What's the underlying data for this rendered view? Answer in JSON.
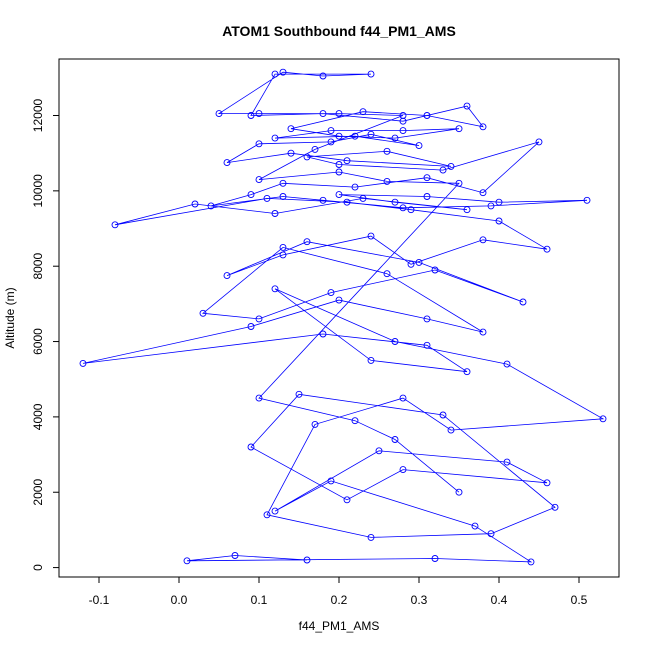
{
  "chart_data": {
    "type": "scatter",
    "title": "ATOM1 Southbound f44_PM1_AMS",
    "xlabel": "f44_PM1_AMS",
    "ylabel": "Altitude (m)",
    "xlim": [
      -0.15,
      0.55
    ],
    "ylim": [
      -250,
      13500
    ],
    "x_ticks": [
      -0.1,
      0.0,
      0.1,
      0.2,
      0.3,
      0.4,
      0.5
    ],
    "x_tick_labels": [
      "-0.1",
      "0.0",
      "0.1",
      "0.2",
      "0.3",
      "0.4",
      "0.5"
    ],
    "y_ticks": [
      0,
      2000,
      4000,
      6000,
      8000,
      10000,
      12000
    ],
    "y_tick_labels": [
      "0",
      "2000",
      "4000",
      "6000",
      "8000",
      "10000",
      "12000"
    ],
    "grid": false,
    "color": "#0000ff",
    "marker": "open-circle",
    "series": [
      {
        "x": [
          0.16,
          0.07,
          0.01,
          0.32,
          0.44,
          0.37,
          0.19,
          0.12,
          0.25,
          0.41,
          0.46,
          0.28,
          0.21,
          0.09,
          0.15,
          0.33,
          0.47,
          0.39,
          0.24,
          0.11,
          0.17,
          0.28,
          0.34,
          0.53,
          0.41,
          0.27,
          0.12,
          0.24,
          0.36,
          0.31,
          0.18,
          -0.12,
          0.09,
          0.2,
          0.31,
          0.38,
          0.26,
          0.13,
          0.03,
          0.1,
          0.19,
          0.32,
          0.43,
          0.3,
          0.16,
          0.06,
          0.13,
          0.24,
          0.29,
          0.38,
          0.46,
          0.4,
          0.29,
          0.21,
          0.11,
          -0.08,
          0.02,
          0.12,
          0.23,
          0.36,
          0.27,
          0.2,
          0.31,
          0.4,
          0.51,
          0.39,
          0.28,
          0.18,
          0.13,
          0.04,
          0.09,
          0.13,
          0.22,
          0.31,
          0.38,
          0.45,
          0.33,
          0.2,
          0.16,
          0.26,
          0.34,
          0.21,
          0.14,
          0.06,
          0.1,
          0.19,
          0.24,
          0.3,
          0.22,
          0.12,
          0.19,
          0.28,
          0.35,
          0.27,
          0.2,
          0.14,
          0.23,
          0.31,
          0.38,
          0.36,
          0.28,
          0.18,
          0.09,
          0.12,
          0.24,
          0.18,
          0.13,
          0.05,
          0.1,
          0.2,
          0.28,
          0.17,
          0.1,
          0.2,
          0.26,
          0.35,
          0.1,
          0.22,
          0.27,
          0.35
        ],
        "y": [
          200,
          320,
          180,
          240,
          150,
          1100,
          2300,
          1500,
          3100,
          2800,
          2250,
          2600,
          1800,
          3200,
          4600,
          4050,
          1600,
          900,
          800,
          1400,
          3800,
          4500,
          3650,
          3950,
          5400,
          6000,
          7400,
          5500,
          5200,
          5900,
          6200,
          5420,
          6400,
          7100,
          6600,
          6250,
          7800,
          8500,
          6750,
          6600,
          7300,
          7900,
          7050,
          8100,
          8650,
          7750,
          8300,
          8800,
          8050,
          8700,
          8450,
          9200,
          9500,
          9700,
          9800,
          9100,
          9650,
          9400,
          9800,
          9500,
          9700,
          9900,
          9850,
          9700,
          9750,
          9600,
          9550,
          9750,
          9850,
          9600,
          9900,
          10200,
          10100,
          10350,
          9950,
          11300,
          10550,
          10700,
          10900,
          11050,
          10650,
          10800,
          11000,
          10750,
          11250,
          11300,
          11500,
          11200,
          11450,
          11400,
          11600,
          11600,
          11650,
          11400,
          11450,
          11650,
          12100,
          12000,
          11700,
          12250,
          11850,
          12050,
          12000,
          13100,
          13100,
          13050,
          13150,
          12050,
          12050,
          12050,
          12000,
          11100,
          10300,
          10500,
          10250,
          10200,
          4500,
          3900,
          3400,
          2000
        ]
      }
    ]
  }
}
